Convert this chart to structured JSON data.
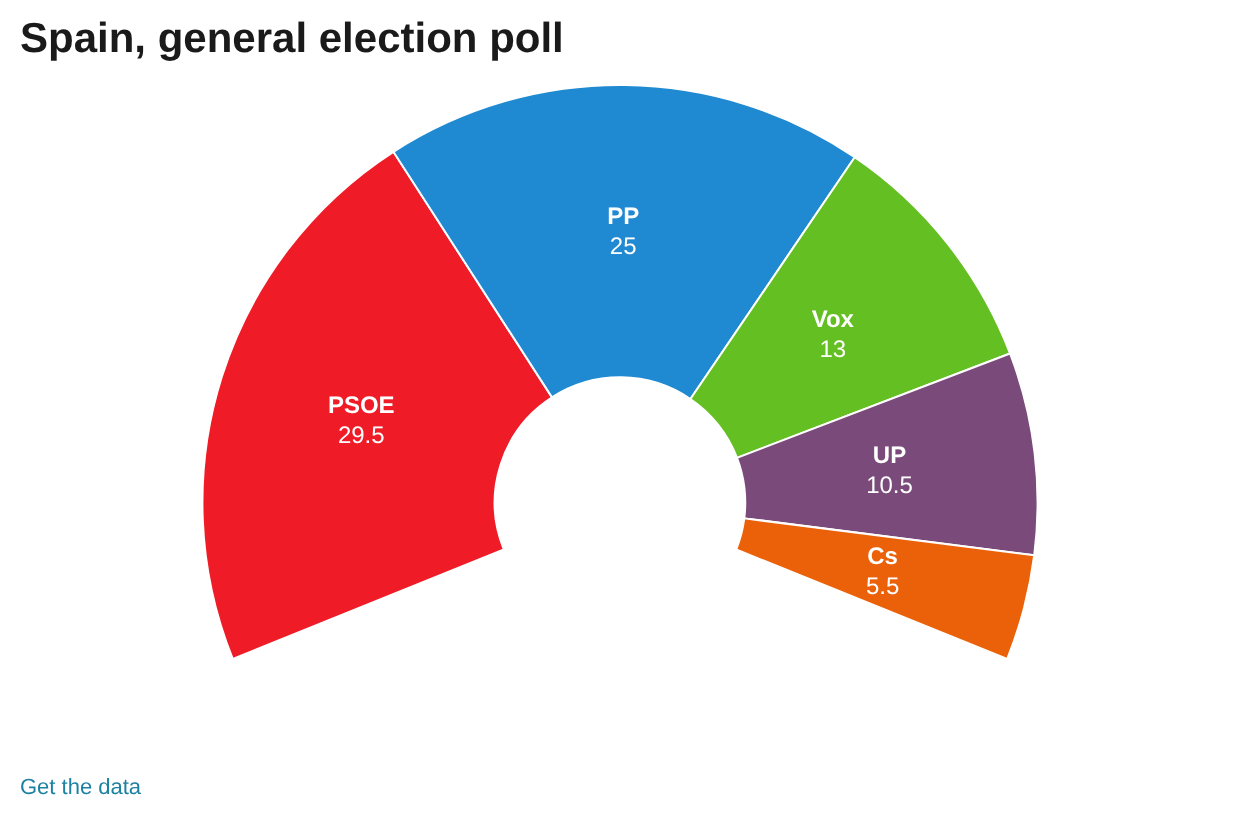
{
  "chart_data": {
    "type": "donut",
    "title": "Spain, general election poll",
    "categories": [
      "PSOE",
      "PP",
      "Vox",
      "UP",
      "Cs"
    ],
    "values": [
      29.5,
      25,
      13,
      10.5,
      5.5
    ],
    "colors": [
      "#ef1c27",
      "#1f89d1",
      "#64bf22",
      "#7a4a7a",
      "#eb6109"
    ],
    "data_labels": true,
    "legend": false,
    "annotations": [
      "Get the data"
    ]
  }
}
